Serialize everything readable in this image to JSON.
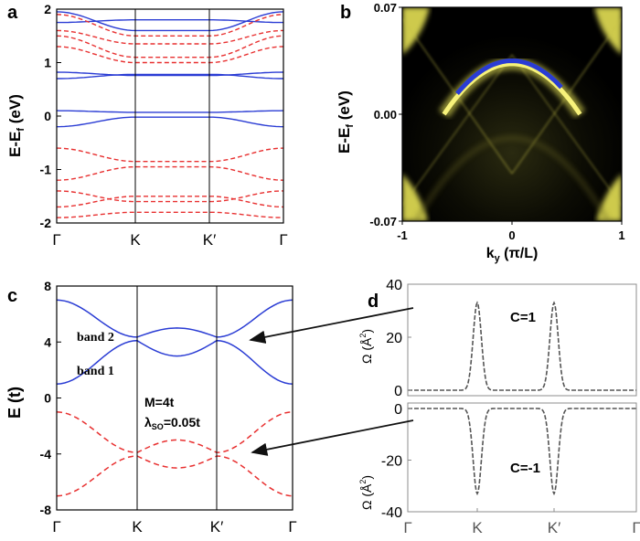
{
  "colors": {
    "blue": "#2a3cd4",
    "red": "#e83030",
    "yellow": "#f2ee5a",
    "black": "#000000",
    "gray": "#8c8c8c",
    "arrow": "#111111"
  },
  "panels": {
    "a": {
      "label": "a",
      "ylabel": "E-E",
      "ylabel_sub": "f",
      "ylabel_unit": " (eV)"
    },
    "b": {
      "label": "b",
      "ylabel": "E-E",
      "ylabel_sub": "f",
      "ylabel_unit": " (eV)",
      "xlabel": "k",
      "xlabel_sub": "y",
      "xlabel_unit": " (π/L)"
    },
    "c": {
      "label": "c",
      "ylabel": "E (t)",
      "band2": "band 2",
      "band1": "band 1",
      "annot_m": "M=4t",
      "annot_lambda": "λ",
      "annot_lambda_sub": "SO",
      "annot_lambda_rest": "=0.05t"
    },
    "d": {
      "label": "d",
      "ylabel_top": "Ω (Å",
      "ylabel_sup": "2",
      "ylabel_close": ")",
      "c_top": "C=1",
      "c_bot": "C=-1"
    }
  },
  "chart_data": [
    {
      "panel": "a",
      "type": "line",
      "ylabel": "E-Ef (eV)",
      "ylim": [
        -2,
        2
      ],
      "yticks": [
        "-2",
        "-1",
        "0",
        "1",
        "2"
      ],
      "xticks": [
        "Γ",
        "K",
        "K′",
        "Γ"
      ],
      "series": [
        {
          "style": "solid",
          "color": "blue",
          "bands": [
            [
              0.1,
              0.07,
              0.07
            ],
            [
              -0.2,
              -0.02,
              -0.02
            ],
            [
              0.82,
              0.76,
              0.76
            ],
            [
              0.7,
              0.78,
              0.78
            ],
            [
              1.75,
              1.8,
              1.8
            ],
            [
              1.95,
              1.6,
              1.6
            ]
          ]
        },
        {
          "style": "dashed",
          "color": "red",
          "bands": [
            [
              1.9,
              1.5,
              1.5
            ],
            [
              1.6,
              1.35,
              1.35
            ],
            [
              1.5,
              1.1,
              1.1
            ],
            [
              1.3,
              1.0,
              1.0
            ],
            [
              -0.6,
              -0.85,
              -0.85
            ],
            [
              -1.2,
              -0.95,
              -0.95
            ],
            [
              -1.4,
              -1.6,
              -1.6
            ],
            [
              -1.7,
              -1.5,
              -1.5
            ],
            [
              -1.9,
              -1.8,
              -1.8
            ]
          ]
        }
      ]
    },
    {
      "panel": "b",
      "type": "heatmap",
      "xlabel": "ky (π/L)",
      "ylabel": "E-Ef (eV)",
      "xlim": [
        -1,
        1
      ],
      "ylim": [
        -0.07,
        0.07
      ],
      "xticks": [
        "-1",
        "0",
        "1"
      ],
      "yticks": [
        "0.07",
        "0.00",
        "-0.07"
      ],
      "edge_state": {
        "peak_energy": 0.033,
        "endpoints": [
          [
            -0.62,
            0.0
          ],
          [
            0.62,
            0.0
          ]
        ]
      }
    },
    {
      "panel": "c",
      "type": "line",
      "ylabel": "E (t)",
      "ylim": [
        -8,
        8
      ],
      "yticks": [
        "8",
        "4",
        "0",
        "-4",
        "-8"
      ],
      "xticks": [
        "Γ",
        "K",
        "K′",
        "Γ"
      ],
      "series": [
        {
          "name": "band 2",
          "style": "solid",
          "color": "blue",
          "gamma": 7.0,
          "k": 4.35,
          "mid": 5.0
        },
        {
          "name": "band 1",
          "style": "solid",
          "color": "blue",
          "gamma": 1.0,
          "k": 4.1,
          "mid": 3.0
        },
        {
          "style": "dashed",
          "color": "red",
          "gamma": -1.0,
          "k": -3.9,
          "mid": -3.0
        },
        {
          "style": "dashed",
          "color": "red",
          "gamma": -7.0,
          "k": -4.15,
          "mid": -5.0
        }
      ]
    },
    {
      "panel": "d-top",
      "type": "line",
      "ylabel": "Ω (Å2)",
      "ylim": [
        0,
        40
      ],
      "yticks": [
        "40",
        "20",
        "0"
      ],
      "annotation": "C=1",
      "peaks": [
        {
          "at": "K",
          "value": 33
        },
        {
          "at": "K′",
          "value": 33
        }
      ]
    },
    {
      "panel": "d-bottom",
      "type": "line",
      "ylabel": "Ω (Å2)",
      "ylim": [
        -40,
        0
      ],
      "yticks": [
        "0",
        "-20",
        "-40"
      ],
      "xticks": [
        "Γ",
        "K",
        "K′",
        "Γ"
      ],
      "annotation": "C=-1",
      "peaks": [
        {
          "at": "K",
          "value": -33
        },
        {
          "at": "K′",
          "value": -33
        }
      ]
    }
  ]
}
